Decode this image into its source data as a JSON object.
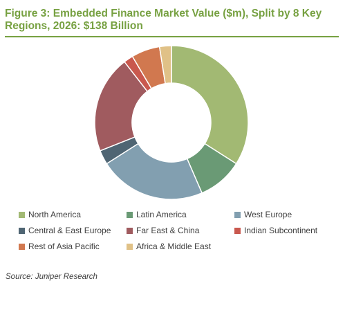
{
  "title": "Figure 3: Embedded Finance Market Value ($m), Split by 8 Key Regions, 2026: $138 Billion",
  "source": "Source: Juniper Research",
  "chart_data": {
    "type": "pie",
    "variant": "donut",
    "legend_position": "bottom",
    "categories": [
      "North America",
      "Latin America",
      "West Europe",
      "Central & East Europe",
      "Far East & China",
      "Indian Subcontinent",
      "Rest of Asia Pacific",
      "Africa & Middle East"
    ],
    "values": [
      34.0,
      9.5,
      22.5,
      3.0,
      20.5,
      2.0,
      6.0,
      2.5
    ],
    "colors": [
      "#a2b973",
      "#6a9a75",
      "#829fb0",
      "#4f6573",
      "#a05b5f",
      "#c9584e",
      "#d1784f",
      "#e0c187"
    ]
  }
}
